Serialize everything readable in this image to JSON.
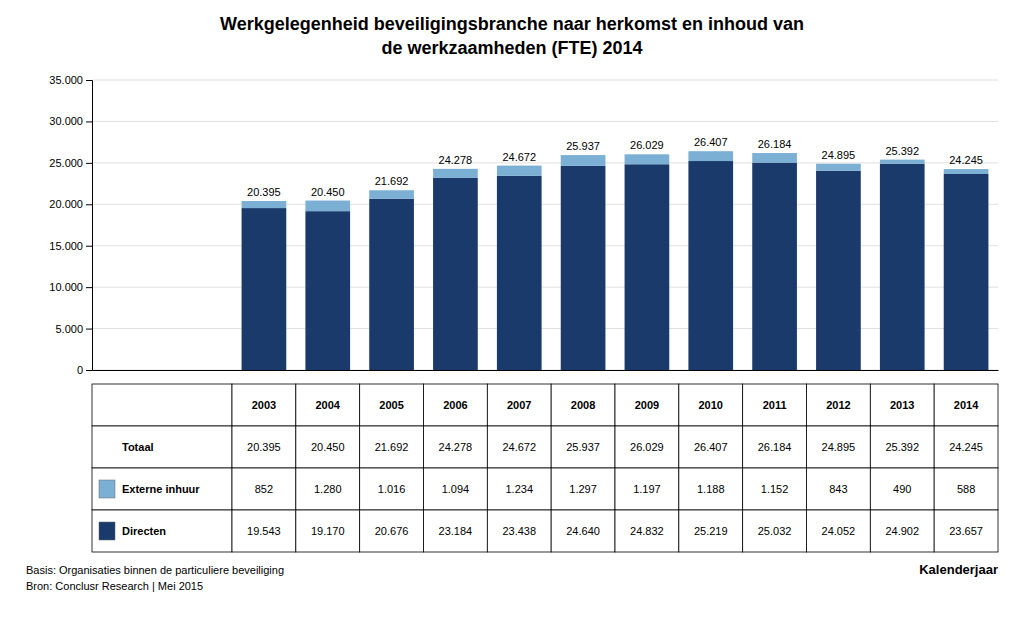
{
  "chart_data": {
    "type": "bar",
    "stacked": true,
    "title": "Werkgelegenheid beveiligingsbranche naar herkomst en inhoud van\nde werkzaamheden (FTE) 2014",
    "categories": [
      "2003",
      "2004",
      "2005",
      "2006",
      "2007",
      "2008",
      "2009",
      "2010",
      "2011",
      "2012",
      "2013",
      "2014"
    ],
    "series": [
      {
        "name": "Directen",
        "color": "#1a3a6b",
        "values": [
          19543,
          19170,
          20676,
          23184,
          23438,
          24640,
          24832,
          25219,
          25032,
          24052,
          24902,
          23657
        ],
        "value_labels": [
          "19.543",
          "19.170",
          "20.676",
          "23.184",
          "23.438",
          "24.640",
          "24.832",
          "25.219",
          "25.032",
          "24.052",
          "24.902",
          "23.657"
        ]
      },
      {
        "name": "Externe inhuur",
        "color": "#7bafd4",
        "values": [
          852,
          1280,
          1016,
          1094,
          1234,
          1297,
          1197,
          1188,
          1152,
          843,
          490,
          588
        ],
        "value_labels": [
          "852",
          "1.280",
          "1.016",
          "1.094",
          "1.234",
          "1.297",
          "1.197",
          "1.188",
          "1.152",
          "843",
          "490",
          "588"
        ]
      }
    ],
    "totals_name": "Totaal",
    "totals": [
      20395,
      20450,
      21692,
      24278,
      24672,
      25937,
      26029,
      26407,
      26184,
      24895,
      25392,
      24245
    ],
    "total_labels": [
      "20.395",
      "20.450",
      "21.692",
      "24.278",
      "24.672",
      "25.937",
      "26.029",
      "26.407",
      "26.184",
      "24.895",
      "25.392",
      "24.245"
    ],
    "ylim": [
      0,
      35000
    ],
    "yticks": [
      0,
      {
        "value": 5000,
        "label": "5.000"
      },
      {
        "value": 10000,
        "label": "10.000"
      },
      {
        "value": 15000,
        "label": "15.000"
      },
      {
        "value": 20000,
        "label": "20.000"
      },
      {
        "value": 25000,
        "label": "25.000"
      },
      {
        "value": 30000,
        "label": "30.000"
      },
      {
        "value": 35000,
        "label": "35.000"
      }
    ],
    "grid": true,
    "tick_labels": "y",
    "xlabel": "Kalenderjaar",
    "footnote": "Basis: Organisaties binnen de particuliere beveiliging\nBron: Conclusr Research | Mei 2015"
  }
}
